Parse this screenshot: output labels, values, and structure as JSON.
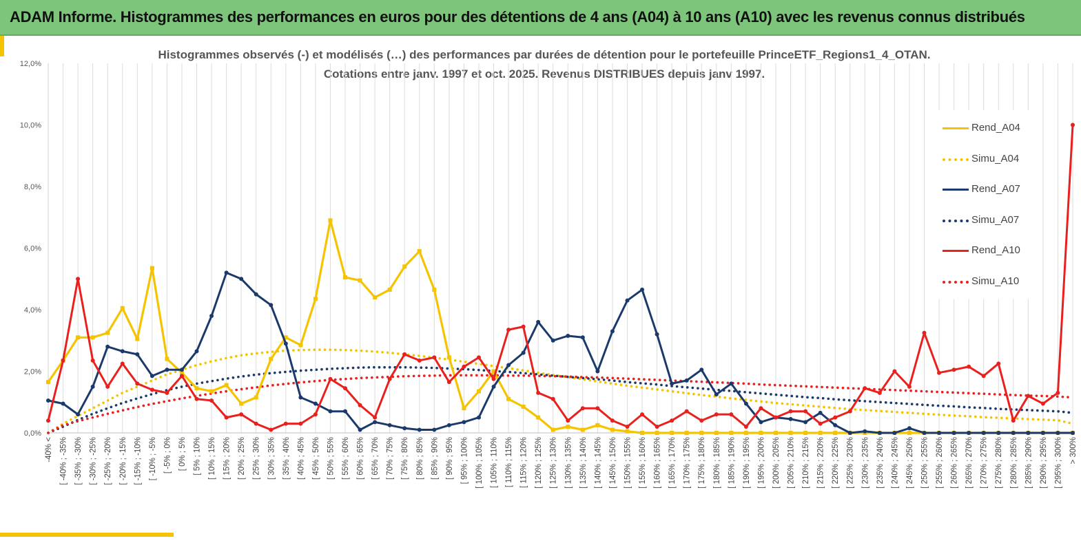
{
  "banner": {
    "title": "ADAM Informe. Histogrammes des performances en euros pour des détentions de 4 ans (A04) à 10 ans (A10) avec les revenus connus distribués"
  },
  "chart_data": {
    "type": "line",
    "title_line1": "Histogrammes observés (-) et modélisés (…) des performances par durées de détention pour le portefeuille PrinceETF_Regions1_4_OTAN.",
    "title_line2": "Cotations entre janv. 1997 et oct. 2025. Revenus DISTRIBUES depuis janv 1997.",
    "ylim": [
      0,
      12
    ],
    "yticks": [
      "0,0%",
      "2,0%",
      "4,0%",
      "6,0%",
      "8,0%",
      "10,0%",
      "12,0%"
    ],
    "grid": "vertical",
    "legend_position": "right",
    "categories": [
      "-40% <",
      "[ -40% ; -35%",
      "[ -35% ; -30%",
      "[ -30% ; -25%",
      "[ -25% ; -20%",
      "[ -20% ; -15%",
      "[ -15% ; -10%",
      "[ -10% ; -5%",
      "[ -5% ; 0%",
      "[ 0% ; 5%",
      "[ 5% ; 10%",
      "[ 10% ; 15%",
      "[ 15% ; 20%",
      "[ 20% ; 25%",
      "[ 25% ; 30%",
      "[ 30% ; 35%",
      "[ 35% ; 40%",
      "[ 40% ; 45%",
      "[ 45% ; 50%",
      "[ 50% ; 55%",
      "[ 55% ; 60%",
      "[ 60% ; 65%",
      "[ 65% ; 70%",
      "[ 70% ; 75%",
      "[ 75% ; 80%",
      "[ 80% ; 85%",
      "[ 85% ; 90%",
      "[ 90% ; 95%",
      "[ 95% ; 100%",
      "[ 100% ; 105%",
      "[ 105% ; 110%",
      "[ 110% ; 115%",
      "[ 115% ; 120%",
      "[ 120% ; 125%",
      "[ 125% ; 130%",
      "[ 130% ; 135%",
      "[ 135% ; 140%",
      "[ 140% ; 145%",
      "[ 145% ; 150%",
      "[ 150% ; 155%",
      "[ 155% ; 160%",
      "[ 160% ; 165%",
      "[ 165% ; 170%",
      "[ 170% ; 175%",
      "[ 175% ; 180%",
      "[ 180% ; 185%",
      "[ 185% ; 190%",
      "[ 190% ; 195%",
      "[ 195% ; 200%",
      "[ 200% ; 205%",
      "[ 205% ; 210%",
      "[ 210% ; 215%",
      "[ 215% ; 220%",
      "[ 220% ; 225%",
      "[ 225% ; 230%",
      "[ 230% ; 235%",
      "[ 235% ; 240%",
      "[ 240% ; 245%",
      "[ 245% ; 250%",
      "[ 250% ; 255%",
      "[ 255% ; 260%",
      "[ 260% ; 265%",
      "[ 265% ; 270%",
      "[ 270% ; 275%",
      "[ 275% ; 280%",
      "[ 280% ; 285%",
      "[ 285% ; 290%",
      "[ 290% ; 295%",
      "[ 295% ; 300%",
      "> 300%"
    ],
    "series": [
      {
        "name": "Rend_A04",
        "color": "#f5c400",
        "style": "solid",
        "marker": "square",
        "values": [
          1.65,
          2.35,
          3.1,
          3.1,
          3.25,
          4.05,
          3.05,
          5.35,
          2.4,
          1.95,
          1.45,
          1.35,
          1.55,
          0.95,
          1.15,
          2.4,
          3.1,
          2.85,
          4.35,
          6.9,
          5.05,
          4.95,
          4.4,
          4.65,
          5.4,
          5.9,
          4.65,
          2.45,
          0.8,
          1.35,
          2.0,
          1.1,
          0.85,
          0.5,
          0.1,
          0.2,
          0.1,
          0.25,
          0.1,
          0.05,
          0,
          0,
          0,
          0,
          0,
          0,
          0,
          0,
          0,
          0,
          0,
          0,
          0,
          0,
          0,
          0,
          0,
          0,
          0,
          0,
          0,
          0,
          0,
          0,
          0,
          0,
          0,
          0,
          0,
          0
        ]
      },
      {
        "name": "Simu_A04",
        "color": "#f5c400",
        "style": "dotted",
        "values": [
          0.0,
          0.3,
          0.55,
          0.8,
          1.05,
          1.3,
          1.5,
          1.7,
          1.9,
          2.05,
          2.2,
          2.32,
          2.43,
          2.52,
          2.58,
          2.63,
          2.67,
          2.69,
          2.7,
          2.7,
          2.69,
          2.67,
          2.64,
          2.6,
          2.55,
          2.5,
          2.44,
          2.38,
          2.31,
          2.24,
          2.17,
          2.1,
          2.03,
          1.95,
          1.88,
          1.81,
          1.74,
          1.67,
          1.6,
          1.53,
          1.47,
          1.41,
          1.35,
          1.29,
          1.23,
          1.18,
          1.12,
          1.07,
          1.02,
          0.97,
          0.93,
          0.89,
          0.85,
          0.81,
          0.77,
          0.74,
          0.71,
          0.68,
          0.65,
          0.62,
          0.59,
          0.56,
          0.54,
          0.51,
          0.49,
          0.47,
          0.45,
          0.43,
          0.41,
          0.3
        ]
      },
      {
        "name": "Rend_A07",
        "color": "#1b3a6b",
        "style": "solid",
        "marker": "circle",
        "values": [
          1.05,
          0.95,
          0.6,
          1.5,
          2.8,
          2.65,
          2.55,
          1.85,
          2.05,
          2.05,
          2.65,
          3.8,
          5.2,
          5.0,
          4.5,
          4.15,
          2.9,
          1.15,
          0.95,
          0.7,
          0.7,
          0.1,
          0.35,
          0.25,
          0.15,
          0.1,
          0.1,
          0.25,
          0.35,
          0.5,
          1.5,
          2.2,
          2.6,
          3.6,
          3.0,
          3.15,
          3.1,
          2.0,
          3.3,
          4.3,
          4.65,
          3.2,
          1.6,
          1.7,
          2.05,
          1.25,
          1.6,
          0.95,
          0.35,
          0.5,
          0.45,
          0.35,
          0.65,
          0.25,
          0.0,
          0.05,
          0.0,
          0.0,
          0.15,
          0.0,
          0.0,
          0.0,
          0.0,
          0.0,
          0.0,
          0.0,
          0.0,
          0.0,
          0.0,
          0.0
        ]
      },
      {
        "name": "Simu_A07",
        "color": "#1b3a6b",
        "style": "dotted",
        "values": [
          0.0,
          0.2,
          0.42,
          0.62,
          0.8,
          0.97,
          1.12,
          1.26,
          1.39,
          1.5,
          1.6,
          1.68,
          1.76,
          1.83,
          1.89,
          1.94,
          1.98,
          2.02,
          2.05,
          2.08,
          2.1,
          2.12,
          2.13,
          2.13,
          2.13,
          2.12,
          2.11,
          2.09,
          2.07,
          2.04,
          2.01,
          1.98,
          1.94,
          1.9,
          1.86,
          1.82,
          1.78,
          1.74,
          1.7,
          1.65,
          1.61,
          1.57,
          1.52,
          1.48,
          1.44,
          1.4,
          1.36,
          1.32,
          1.28,
          1.24,
          1.2,
          1.16,
          1.13,
          1.09,
          1.06,
          1.03,
          1.0,
          0.97,
          0.94,
          0.91,
          0.88,
          0.86,
          0.83,
          0.81,
          0.78,
          0.76,
          0.74,
          0.72,
          0.7,
          0.65
        ]
      },
      {
        "name": "Rend_A10",
        "color": "#e8211e",
        "style": "solid",
        "marker": "circle",
        "values": [
          0.4,
          2.35,
          5.0,
          2.35,
          1.5,
          2.25,
          1.6,
          1.4,
          1.3,
          1.85,
          1.1,
          1.05,
          0.5,
          0.6,
          0.3,
          0.1,
          0.3,
          0.3,
          0.6,
          1.75,
          1.45,
          0.9,
          0.5,
          1.75,
          2.55,
          2.35,
          2.45,
          1.65,
          2.15,
          2.45,
          1.75,
          3.35,
          3.45,
          1.3,
          1.1,
          0.4,
          0.8,
          0.8,
          0.4,
          0.2,
          0.6,
          0.2,
          0.4,
          0.7,
          0.4,
          0.6,
          0.6,
          0.2,
          0.8,
          0.5,
          0.7,
          0.7,
          0.3,
          0.5,
          0.7,
          1.45,
          1.3,
          2.0,
          1.5,
          3.25,
          1.95,
          2.05,
          2.15,
          1.85,
          2.25,
          0.4,
          1.2,
          0.95,
          1.3,
          10.0
        ]
      },
      {
        "name": "Simu_A10",
        "color": "#e8211e",
        "style": "dotted",
        "values": [
          0.0,
          0.25,
          0.38,
          0.5,
          0.62,
          0.73,
          0.84,
          0.94,
          1.03,
          1.12,
          1.2,
          1.28,
          1.35,
          1.42,
          1.48,
          1.54,
          1.59,
          1.64,
          1.68,
          1.72,
          1.75,
          1.78,
          1.8,
          1.82,
          1.84,
          1.85,
          1.86,
          1.87,
          1.87,
          1.87,
          1.87,
          1.86,
          1.86,
          1.85,
          1.84,
          1.83,
          1.81,
          1.8,
          1.78,
          1.76,
          1.74,
          1.72,
          1.7,
          1.68,
          1.66,
          1.64,
          1.62,
          1.6,
          1.57,
          1.55,
          1.53,
          1.51,
          1.49,
          1.47,
          1.45,
          1.43,
          1.41,
          1.39,
          1.37,
          1.35,
          1.33,
          1.31,
          1.29,
          1.27,
          1.25,
          1.23,
          1.21,
          1.2,
          1.18,
          1.15
        ]
      }
    ]
  }
}
